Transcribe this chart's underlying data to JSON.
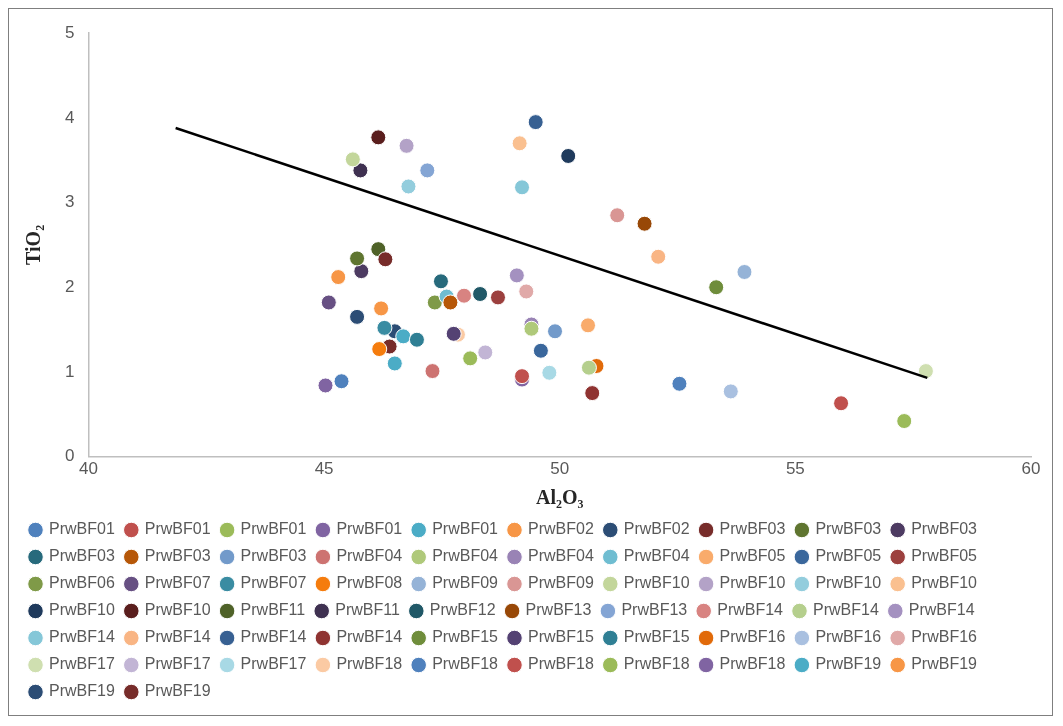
{
  "chart_data": {
    "type": "scatter",
    "xlabel": "Al₂O₃",
    "ylabel": "TiO₂",
    "xlim": [
      40,
      60
    ],
    "xticks": [
      40,
      45,
      50,
      55,
      60
    ],
    "ylim": [
      0,
      5
    ],
    "yticks": [
      0,
      1,
      2,
      3,
      4,
      5
    ],
    "legend": "bottom",
    "marker": "circle",
    "series": [
      {
        "name": "PrwBF01",
        "color": "#4f81bd",
        "x": [
          45.37
        ],
        "values": [
          0.89
        ]
      },
      {
        "name": "PrwBF01",
        "color": "#c0504d",
        "x": [
          49.2
        ],
        "values": [
          0.95
        ]
      },
      {
        "name": "PrwBF01",
        "color": "#9bbb59",
        "x": [
          48.1
        ],
        "values": [
          1.16
        ]
      },
      {
        "name": "PrwBF01",
        "color": "#8064a2",
        "x": [
          49.2
        ],
        "values": [
          0.91
        ]
      },
      {
        "name": "PrwBF01",
        "color": "#4bacc6",
        "x": [
          46.5
        ],
        "values": [
          1.1
        ]
      },
      {
        "name": "PrwBF02",
        "color": "#f79646",
        "x": [
          45.3
        ],
        "values": [
          2.12
        ]
      },
      {
        "name": "PrwBF02",
        "color": "#2c4d75",
        "x": [
          45.7
        ],
        "values": [
          1.65
        ]
      },
      {
        "name": "PrwBF03",
        "color": "#772c2a",
        "x": [
          46.3
        ],
        "values": [
          2.33
        ]
      },
      {
        "name": "PrwBF03",
        "color": "#5f7530",
        "x": [
          45.7
        ],
        "values": [
          2.34
        ]
      },
      {
        "name": "PrwBF03",
        "color": "#4d3b62",
        "x": [
          45.79
        ],
        "values": [
          2.19
        ]
      },
      {
        "name": "PrwBF03",
        "color": "#276a7c",
        "x": [
          47.48
        ],
        "values": [
          2.07
        ]
      },
      {
        "name": "PrwBF03",
        "color": "#b65708",
        "x": [
          47.68
        ],
        "values": [
          1.82
        ]
      },
      {
        "name": "PrwBF03",
        "color": "#729aca",
        "x": [
          49.9
        ],
        "values": [
          1.48
        ]
      },
      {
        "name": "PrwBF04",
        "color": "#cd7371",
        "x": [
          47.3
        ],
        "values": [
          1.01
        ]
      },
      {
        "name": "PrwBF04",
        "color": "#afc97a",
        "x": [
          49.4
        ],
        "values": [
          1.51
        ]
      },
      {
        "name": "PrwBF04",
        "color": "#9983b5",
        "x": [
          49.4
        ],
        "values": [
          1.56
        ]
      },
      {
        "name": "PrwBF04",
        "color": "#6fbdd1",
        "x": [
          47.6
        ],
        "values": [
          1.89
        ]
      },
      {
        "name": "PrwBF05",
        "color": "#f9ab6b",
        "x": [
          50.6
        ],
        "values": [
          1.55
        ]
      },
      {
        "name": "PrwBF05",
        "color": "#3a679c",
        "x": [
          49.6
        ],
        "values": [
          1.25
        ]
      },
      {
        "name": "PrwBF05",
        "color": "#9c403e",
        "x": [
          48.69
        ],
        "values": [
          1.88
        ]
      },
      {
        "name": "PrwBF06",
        "color": "#7f9a48",
        "x": [
          47.35
        ],
        "values": [
          1.82
        ]
      },
      {
        "name": "PrwBF07",
        "color": "#675083",
        "x": [
          45.1
        ],
        "values": [
          1.82
        ]
      },
      {
        "name": "PrwBF07",
        "color": "#3a8ca2",
        "x": [
          46.28
        ],
        "values": [
          1.52
        ]
      },
      {
        "name": "PrwBF08",
        "color": "#f57c0d",
        "x": [
          46.17
        ],
        "values": [
          1.27
        ]
      },
      {
        "name": "PrwBF09",
        "color": "#95b3d7",
        "x": [
          53.92
        ],
        "values": [
          2.18
        ]
      },
      {
        "name": "PrwBF09",
        "color": "#d99694",
        "x": [
          51.22
        ],
        "values": [
          2.85
        ]
      },
      {
        "name": "PrwBF10",
        "color": "#c3d69b",
        "x": [
          45.61
        ],
        "values": [
          3.51
        ]
      },
      {
        "name": "PrwBF10",
        "color": "#b3a2c7",
        "x": [
          46.75
        ],
        "values": [
          3.67
        ]
      },
      {
        "name": "PrwBF10",
        "color": "#93cddd",
        "x": [
          46.79
        ],
        "values": [
          3.19
        ]
      },
      {
        "name": "PrwBF10",
        "color": "#fac090",
        "x": [
          49.15
        ],
        "values": [
          3.7
        ]
      },
      {
        "name": "PrwBF10",
        "color": "#1f3a5c",
        "x": [
          50.18
        ],
        "values": [
          3.55
        ]
      },
      {
        "name": "PrwBF10",
        "color": "#5a1e1d",
        "x": [
          46.15
        ],
        "values": [
          3.77
        ]
      },
      {
        "name": "PrwBF11",
        "color": "#4f6228",
        "x": [
          46.15
        ],
        "values": [
          2.45
        ]
      },
      {
        "name": "PrwBF11",
        "color": "#3f3151",
        "x": [
          45.77
        ],
        "values": [
          3.38
        ]
      },
      {
        "name": "PrwBF12",
        "color": "#205867",
        "x": [
          48.31
        ],
        "values": [
          1.92
        ]
      },
      {
        "name": "PrwBF13",
        "color": "#984807",
        "x": [
          51.8
        ],
        "values": [
          2.75
        ]
      },
      {
        "name": "PrwBF13",
        "color": "#84a5d4",
        "x": [
          47.19
        ],
        "values": [
          3.38
        ]
      },
      {
        "name": "PrwBF14",
        "color": "#d88381",
        "x": [
          47.97
        ],
        "values": [
          1.9
        ]
      },
      {
        "name": "PrwBF14",
        "color": "#b5cf8d",
        "x": [
          50.62
        ],
        "values": [
          1.05
        ]
      },
      {
        "name": "PrwBF14",
        "color": "#a491c0",
        "x": [
          49.09
        ],
        "values": [
          2.14
        ]
      },
      {
        "name": "PrwBF14",
        "color": "#85c7d8",
        "x": [
          49.2
        ],
        "values": [
          3.18
        ]
      },
      {
        "name": "PrwBF14",
        "color": "#f9b584",
        "x": [
          52.09
        ],
        "values": [
          2.36
        ]
      },
      {
        "name": "PrwBF14",
        "color": "#376092",
        "x": [
          49.49
        ],
        "values": [
          3.95
        ]
      },
      {
        "name": "PrwBF14",
        "color": "#8f3331",
        "x": [
          50.69
        ],
        "values": [
          0.75
        ]
      },
      {
        "name": "PrwBF15",
        "color": "#6f8d3b",
        "x": [
          53.32
        ],
        "values": [
          2.0
        ]
      },
      {
        "name": "PrwBF15",
        "color": "#544273",
        "x": [
          47.75
        ],
        "values": [
          1.45
        ]
      },
      {
        "name": "PrwBF15",
        "color": "#2f7f94",
        "x": [
          46.97
        ],
        "values": [
          1.38
        ]
      },
      {
        "name": "PrwBF16",
        "color": "#e16a09",
        "x": [
          50.78
        ],
        "values": [
          1.07
        ]
      },
      {
        "name": "PrwBF16",
        "color": "#a9c0e0",
        "x": [
          53.63
        ],
        "values": [
          0.77
        ]
      },
      {
        "name": "PrwBF16",
        "color": "#e0a9a8",
        "x": [
          49.29
        ],
        "values": [
          1.95
        ]
      },
      {
        "name": "PrwBF17",
        "color": "#cfdfb0",
        "x": [
          57.77
        ],
        "values": [
          1.01
        ]
      },
      {
        "name": "PrwBF17",
        "color": "#c2b5d5",
        "x": [
          48.42
        ],
        "values": [
          1.23
        ]
      },
      {
        "name": "PrwBF17",
        "color": "#a8d9e5",
        "x": [
          49.78
        ],
        "values": [
          0.99
        ]
      },
      {
        "name": "PrwBF18",
        "color": "#fbcaa3",
        "x": [
          47.84
        ],
        "values": [
          1.44
        ]
      },
      {
        "name": "PrwBF18",
        "color": "#4f81bd",
        "x": [
          52.54
        ],
        "values": [
          0.86
        ]
      },
      {
        "name": "PrwBF18",
        "color": "#c0504d",
        "x": [
          55.97
        ],
        "values": [
          0.63
        ]
      },
      {
        "name": "PrwBF18",
        "color": "#9bbb59",
        "x": [
          57.31
        ],
        "values": [
          0.42
        ]
      },
      {
        "name": "PrwBF18",
        "color": "#8064a2",
        "x": [
          45.03
        ],
        "values": [
          0.84
        ]
      },
      {
        "name": "PrwBF19",
        "color": "#4bacc6",
        "x": [
          46.68
        ],
        "values": [
          1.42
        ]
      },
      {
        "name": "PrwBF19",
        "color": "#f79646",
        "x": [
          46.21
        ],
        "values": [
          1.75
        ]
      },
      {
        "name": "PrwBF19",
        "color": "#2c4d75",
        "x": [
          46.5
        ],
        "values": [
          1.48
        ]
      },
      {
        "name": "PrwBF19",
        "color": "#772c2a",
        "x": [
          46.39
        ],
        "values": [
          1.3
        ]
      },
      {
        "type": "line",
        "color": "#000000",
        "marker": "none",
        "x": [
          41.85,
          57.8
        ],
        "values": [
          3.88,
          0.93
        ]
      }
    ]
  }
}
